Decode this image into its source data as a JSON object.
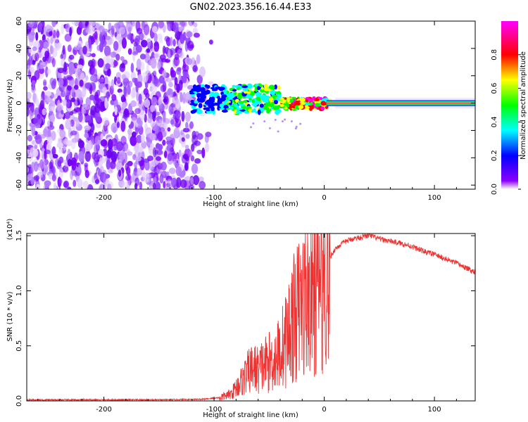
{
  "chart_data": [
    {
      "type": "heatmap",
      "title": "GN02.2023.356.16.44.E33",
      "xlabel": "Height of straight line (km)",
      "ylabel": "Frequency (Hz)",
      "xlim": [
        -270,
        137
      ],
      "ylim": [
        -63,
        60
      ],
      "xticks": [
        -200,
        -100,
        0,
        100
      ],
      "xtick_labels": [
        "-200",
        "-100",
        "0",
        "100"
      ],
      "yticks": [
        -60,
        -40,
        -20,
        0,
        20,
        40,
        60
      ],
      "ytick_labels": [
        "-60",
        "-40",
        "-20",
        "0",
        "20",
        "40",
        "60"
      ],
      "colorbar": {
        "label": "Normalized spectral amplitude",
        "range": [
          0,
          1
        ],
        "ticks": [
          0.0,
          0.2,
          0.4,
          0.6,
          0.8
        ],
        "tick_labels": [
          "0.0",
          "0.2",
          "0.4",
          "0.6",
          "0.8"
        ],
        "colormap": [
          "#ffffff",
          "#8a00ff",
          "#0000ff",
          "#00ffff",
          "#00ff00",
          "#ffff00",
          "#ff0000",
          "#ff00ff"
        ]
      },
      "regions": [
        {
          "x_range": [
            -270,
            -105
          ],
          "freq_range": [
            -63,
            60
          ],
          "amplitude": "low, broadband scatter"
        },
        {
          "x_range": [
            -120,
            -40
          ],
          "freq_range": [
            -10,
            15
          ],
          "amplitude": "0.2 - 0.5"
        },
        {
          "x_range": [
            -40,
            0
          ],
          "freq_range": [
            -4,
            5
          ],
          "amplitude": "0.4 - 0.8"
        },
        {
          "x_range": [
            0,
            137
          ],
          "freq_range": [
            -2,
            2
          ],
          "amplitude": "0.9 - 1.0"
        }
      ],
      "grid": false,
      "legend": "colorbar at right"
    },
    {
      "type": "line",
      "xlabel": "Height of straight line (km)",
      "ylabel": "SNR (10 * v/v)",
      "y_multiplier_label": "(x10⁴)",
      "xlim": [
        -270,
        137
      ],
      "ylim": [
        0,
        1.52
      ],
      "xticks": [
        -200,
        -100,
        0,
        100
      ],
      "xtick_labels": [
        "-200",
        "-100",
        "0",
        "100"
      ],
      "yticks": [
        0.0,
        0.5,
        1.0,
        1.5
      ],
      "ytick_labels": [
        "0.0",
        "0.5",
        "1.0",
        "1.5"
      ],
      "series_color": "#ee3333",
      "series": [
        {
          "x": [
            -270,
            -250,
            -200,
            -150,
            -110,
            -95,
            -85,
            -75,
            -70,
            -65,
            -60,
            -55,
            -50,
            -45,
            -40,
            -35,
            -30,
            -25,
            -20,
            -15,
            -10,
            -5,
            0,
            5,
            10,
            15,
            20,
            25,
            30,
            35,
            40,
            45,
            50,
            60,
            70,
            80,
            90,
            100,
            110,
            120,
            130,
            137
          ],
          "y": [
            0.01,
            0.01,
            0.01,
            0.01,
            0.015,
            0.03,
            0.06,
            0.18,
            0.25,
            0.3,
            0.28,
            0.33,
            0.35,
            0.38,
            0.45,
            0.55,
            0.7,
            0.8,
            0.88,
            0.95,
            1.0,
            1.1,
            1.15,
            1.3,
            1.38,
            1.42,
            1.45,
            1.47,
            1.48,
            1.49,
            1.5,
            1.49,
            1.47,
            1.45,
            1.43,
            1.4,
            1.36,
            1.33,
            1.29,
            1.25,
            1.2,
            1.17
          ]
        }
      ],
      "grid": false
    }
  ]
}
